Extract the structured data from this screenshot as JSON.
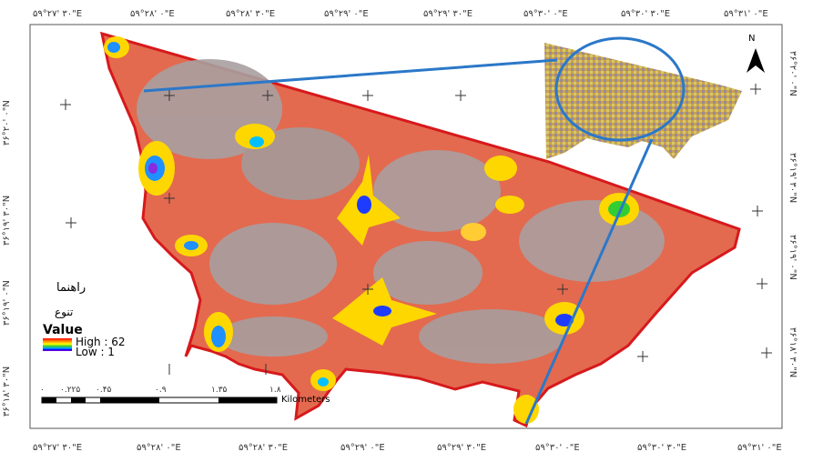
{
  "coordinates": {
    "top": [
      "۵۹°۲۷' ۳۰\"E",
      "۵۹°۲۸' ۰\"E",
      "۵۹°۲۸' ۳۰\"E",
      "۵۹°۲۹' ۰\"E",
      "۵۹°۲۹' ۳۰\"E",
      "۵۹°۳۰' ۰\"E",
      "۵۹°۳۰' ۳۰\"E",
      "۵۹°۳۱' ۰\"E"
    ],
    "bottom": [
      "۵۹°۲۷' ۳۰\"E",
      "۵۹°۲۸' ۰\"E",
      "۵۹°۲۸' ۳۰\"E",
      "۵۹°۲۹' ۰\"E",
      "۵۹°۲۹' ۳۰\"E",
      "۵۹°۳۰' ۰\"E",
      "۵۹°۳۰' ۳۰\"E",
      "۵۹°۳۱' ۰\"E"
    ],
    "left": [
      "۳۶°۲۰' ۰\"N",
      "۳۶°۱۹' ۳۰\"N",
      "۳۶°۱۹' ۰\"N",
      "۳۶°۱۸' ۳۰\"N"
    ],
    "right": [
      "۳۶°۲۰' ۰\"N",
      "۳۶°۱۹' ۳۰\"N",
      "۳۶°۱۹' ۰\"N",
      "۳۶°۱۸' ۳۰\"N"
    ]
  },
  "legend": {
    "title": "راهنما",
    "subtitle": "تنوع",
    "field": "Value",
    "high_label": "High : 62",
    "low_label": "Low : 1",
    "ramp_colors": [
      "#d7191c",
      "#ff7f00",
      "#ffd700",
      "#ffff00",
      "#32cd32",
      "#00bfff",
      "#0000ff",
      "#8a2be2"
    ]
  },
  "scale_bar": {
    "ticks": [
      "۰",
      "۰.۲۲۵",
      "۰.۴۵",
      "۰.۹",
      "۱.۳۵",
      "۱.۸"
    ],
    "unit": "Kilometers"
  },
  "north_arrow": {
    "label": "N"
  },
  "colors": {
    "boundary": "#d7191c",
    "fill_gray": "#a6a6a6",
    "fill_salmon": "#e8735a",
    "callout": "#2b78c8",
    "high": "#d7191c",
    "mid": "#ffd700",
    "low": "#0000ff"
  }
}
